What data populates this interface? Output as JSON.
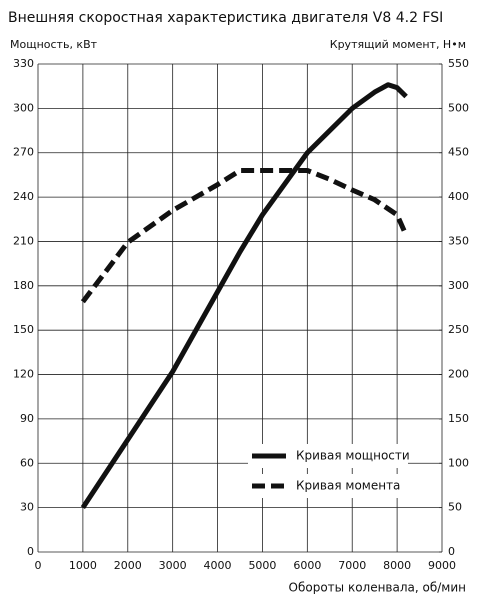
{
  "chart_data": {
    "type": "line",
    "title": "Внешняя скоростная характеристика двигателя V8 4.2 FSI",
    "y_label": "Мощность, кВт",
    "y2_label": "Крутящий момент, Н•м",
    "x_label": "Обороты коленвала, об/мин",
    "xlim": [
      0,
      9000
    ],
    "xticks": [
      0,
      1000,
      2000,
      3000,
      4000,
      5000,
      6000,
      7000,
      8000,
      9000
    ],
    "ylim": [
      0,
      330
    ],
    "yticks": [
      0,
      30,
      60,
      90,
      120,
      150,
      180,
      210,
      240,
      270,
      300,
      330
    ],
    "y2lim": [
      0,
      550
    ],
    "y2ticks": [
      0,
      50,
      100,
      150,
      200,
      250,
      300,
      350,
      400,
      450,
      500,
      550
    ],
    "grid": true,
    "legend": "lower right",
    "series": [
      {
        "name": "Кривая мощности",
        "color": "#111111",
        "style": "solid",
        "x": [
          1000,
          2000,
          3000,
          4000,
          4500,
          5000,
          6000,
          7000,
          7500,
          7800,
          8000,
          8200
        ],
        "values": [
          30,
          76,
          122,
          176,
          203,
          228,
          270,
          300,
          311,
          316,
          314,
          308
        ]
      },
      {
        "name": "Кривая момента",
        "color": "#111111",
        "style": "dashed",
        "axis": "y2",
        "x": [
          1000,
          2000,
          3000,
          4000,
          4500,
          5000,
          6000,
          6500,
          7000,
          7500,
          8000,
          8200
        ],
        "values": [
          282,
          349,
          385,
          414,
          430,
          430,
          430,
          420,
          408,
          397,
          380,
          357
        ]
      }
    ]
  }
}
